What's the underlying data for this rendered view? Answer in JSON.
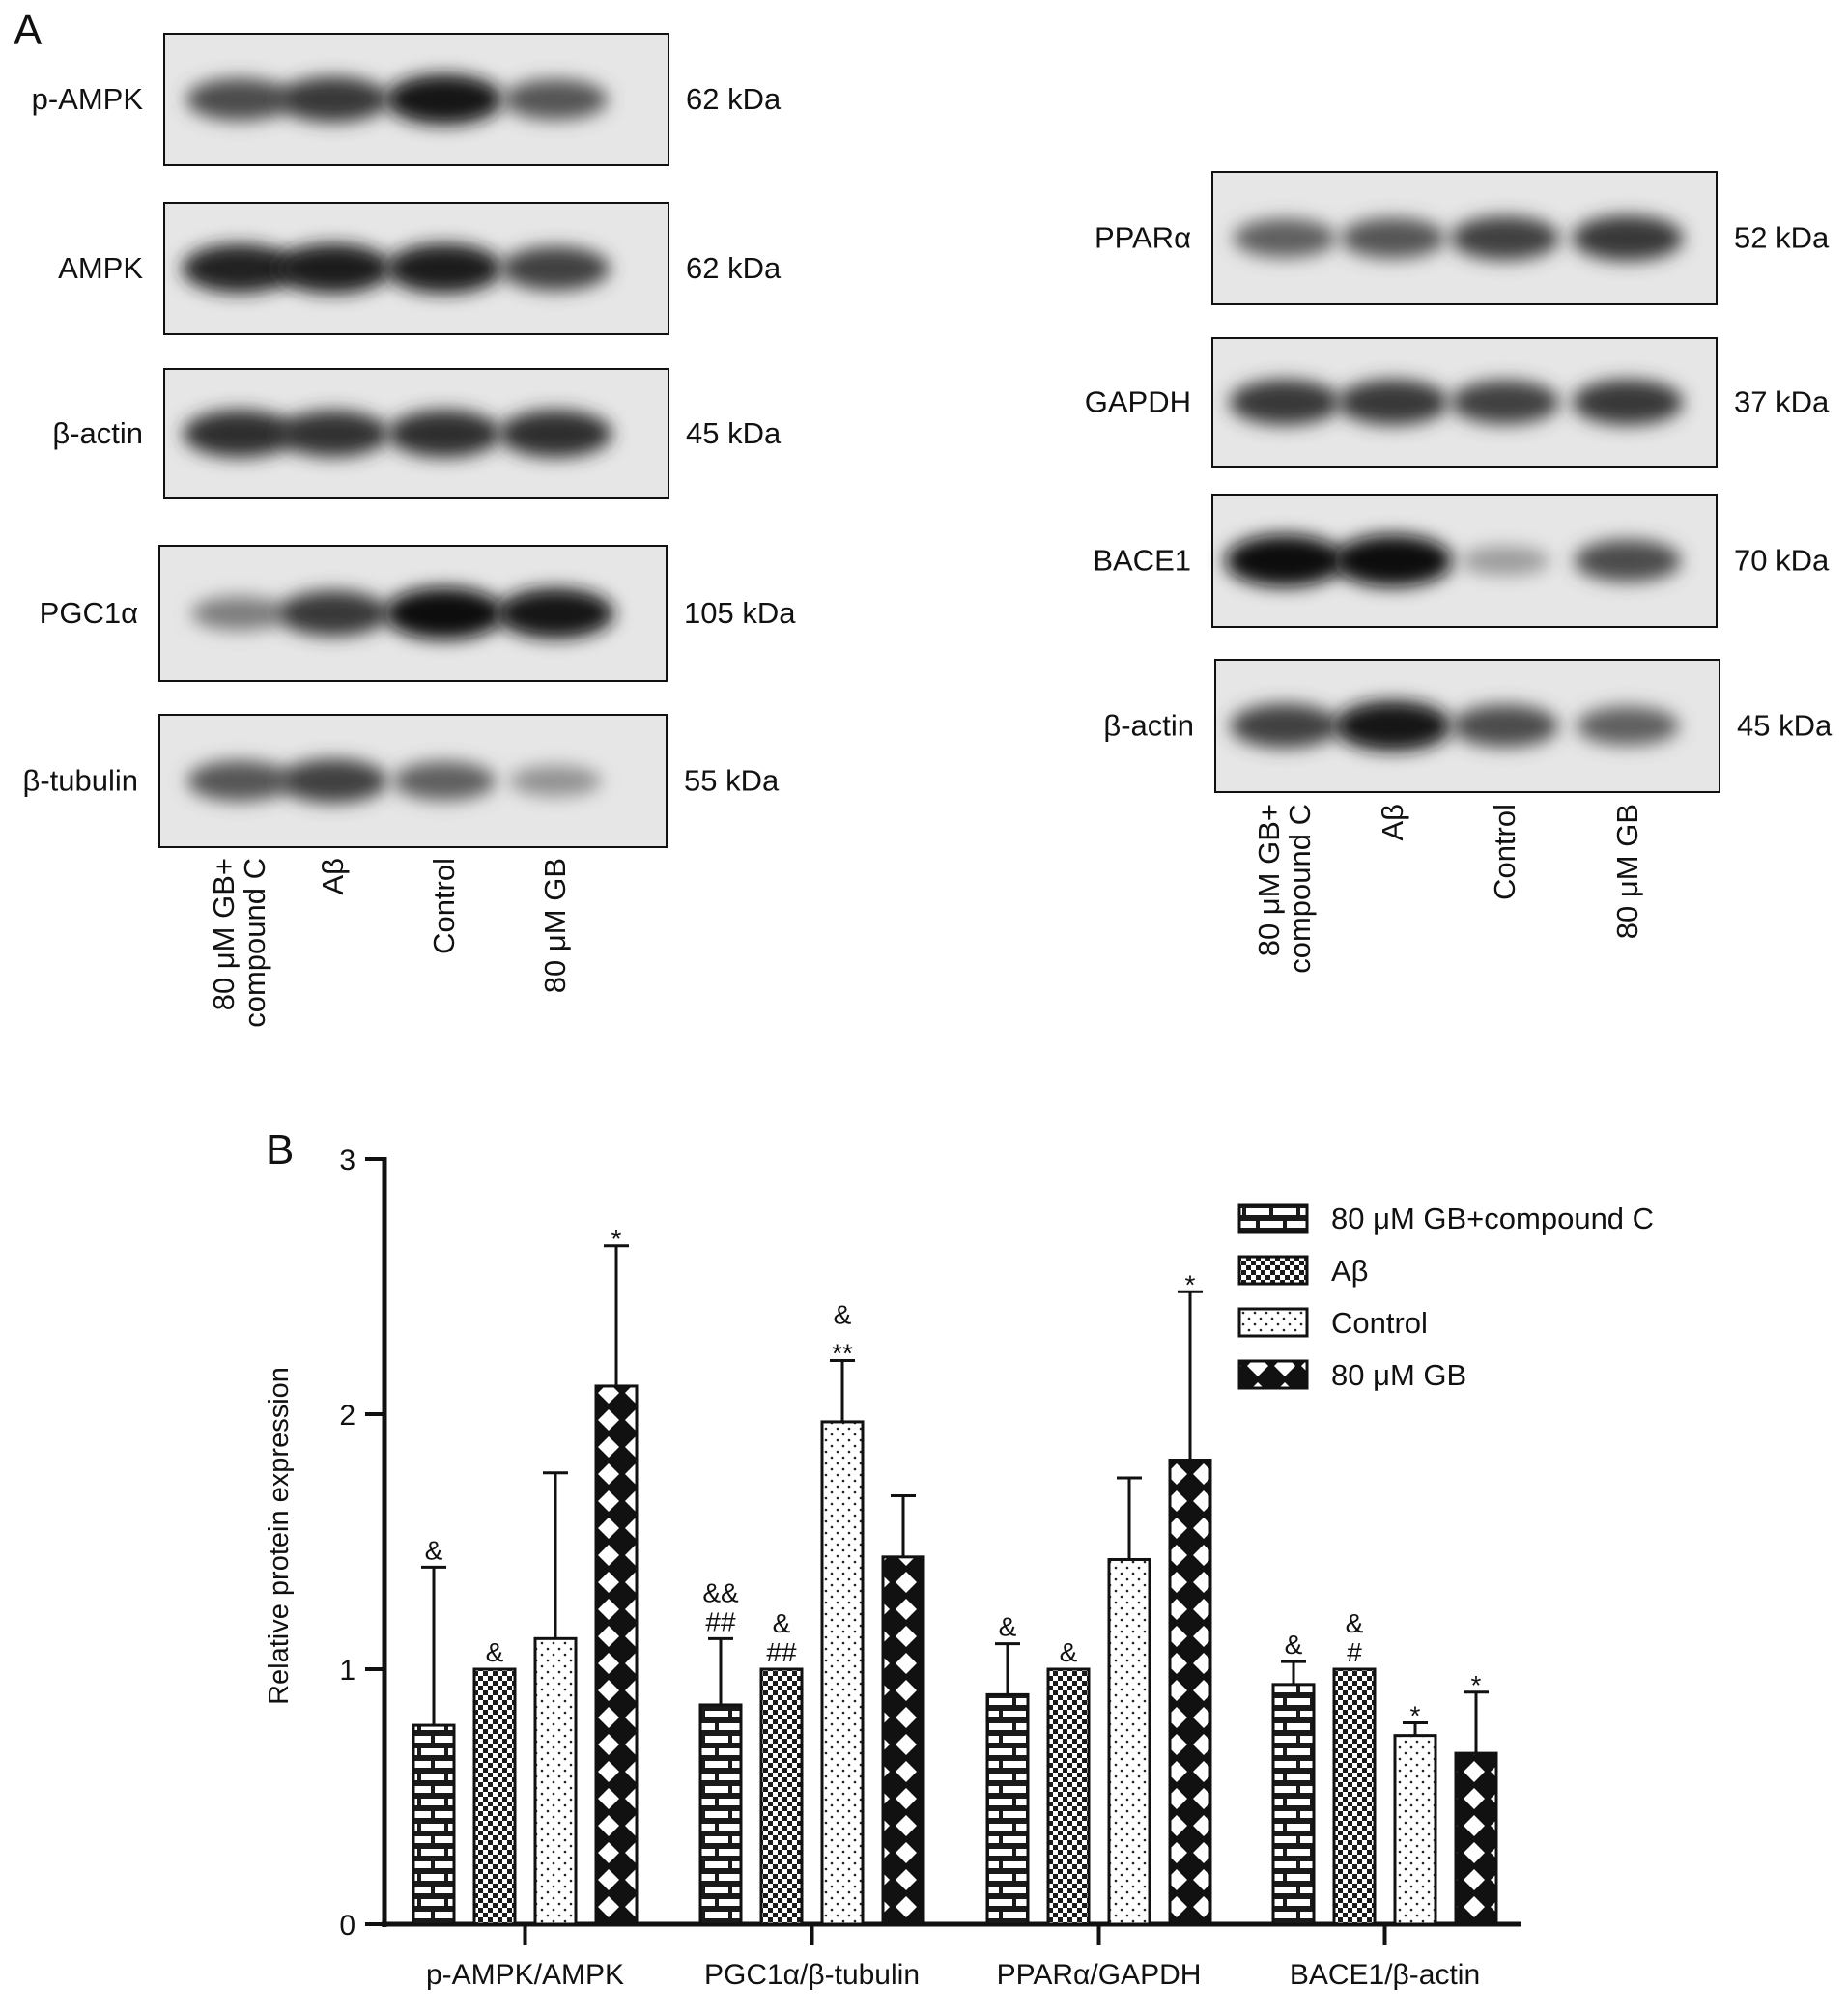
{
  "panels": {
    "a_label": "A",
    "b_label": "B"
  },
  "blots": {
    "left": [
      {
        "label": "p-AMPK",
        "size": "62 kDa",
        "intensities": [
          0.7,
          0.8,
          0.95,
          0.65
        ]
      },
      {
        "label": "AMPK",
        "size": "62 kDa",
        "intensities": [
          0.9,
          0.92,
          0.92,
          0.75
        ]
      },
      {
        "label": "β-actin",
        "size": "45 kDa",
        "intensities": [
          0.85,
          0.82,
          0.85,
          0.85
        ]
      },
      {
        "label": "PGC1α",
        "size": "105 kDa",
        "intensities": [
          0.45,
          0.8,
          1.0,
          0.95
        ]
      },
      {
        "label": "β-tubulin",
        "size": "55 kDa",
        "intensities": [
          0.65,
          0.75,
          0.6,
          0.35
        ]
      }
    ],
    "right": [
      {
        "label": "PPARα",
        "size": "52 kDa",
        "intensities": [
          0.6,
          0.65,
          0.75,
          0.8
        ]
      },
      {
        "label": "GAPDH",
        "size": "37 kDa",
        "intensities": [
          0.8,
          0.8,
          0.75,
          0.8
        ]
      },
      {
        "label": "BACE1",
        "size": "70 kDa",
        "intensities": [
          1.0,
          1.0,
          0.3,
          0.7
        ]
      },
      {
        "label": "β-actin",
        "size": "45 kDa",
        "intensities": [
          0.75,
          0.95,
          0.7,
          0.6
        ]
      }
    ],
    "lanes": [
      "80 μM GB+\ncompound C",
      "Aβ",
      "Control",
      "80 μM GB"
    ]
  },
  "chart_data": {
    "type": "bar",
    "categories": [
      "p-AMPK/AMPK",
      "PGC1α/β-tubulin",
      "PPARα/GAPDH",
      "BACE1/β-actin"
    ],
    "ylabel": "Relative protein expression",
    "ylim": [
      0,
      3
    ],
    "yticks": [
      0,
      1,
      2,
      3
    ],
    "legend_position": "top-right",
    "series": [
      {
        "name": "80 μM GB+compound C",
        "pattern": "brick",
        "values": [
          0.78,
          0.86,
          0.9,
          0.94
        ],
        "errors": [
          0.62,
          0.26,
          0.2,
          0.09
        ],
        "annotations": [
          [
            "&"
          ],
          [
            "&&",
            "##"
          ],
          [
            "&"
          ],
          [
            "&"
          ]
        ]
      },
      {
        "name": "Aβ",
        "pattern": "checker",
        "values": [
          1.0,
          1.0,
          1.0,
          1.0
        ],
        "errors": [
          0,
          0,
          0,
          0
        ],
        "annotations": [
          [
            "&"
          ],
          [
            "&",
            "##"
          ],
          [
            "&"
          ],
          [
            "&",
            "#"
          ]
        ]
      },
      {
        "name": "Control",
        "pattern": "dots",
        "values": [
          1.12,
          1.97,
          1.43,
          0.74
        ],
        "errors": [
          0.65,
          0.24,
          0.32,
          0.05
        ],
        "annotations": [
          [],
          [
            "&",
            "**"
          ],
          [],
          [
            "*"
          ]
        ]
      },
      {
        "name": "80 μM GB",
        "pattern": "diamond",
        "values": [
          2.11,
          1.44,
          1.82,
          0.67
        ],
        "errors": [
          0.55,
          0.24,
          0.66,
          0.24
        ],
        "annotations": [
          [
            "*"
          ],
          [],
          [
            "*"
          ],
          [
            "*"
          ]
        ]
      }
    ]
  }
}
